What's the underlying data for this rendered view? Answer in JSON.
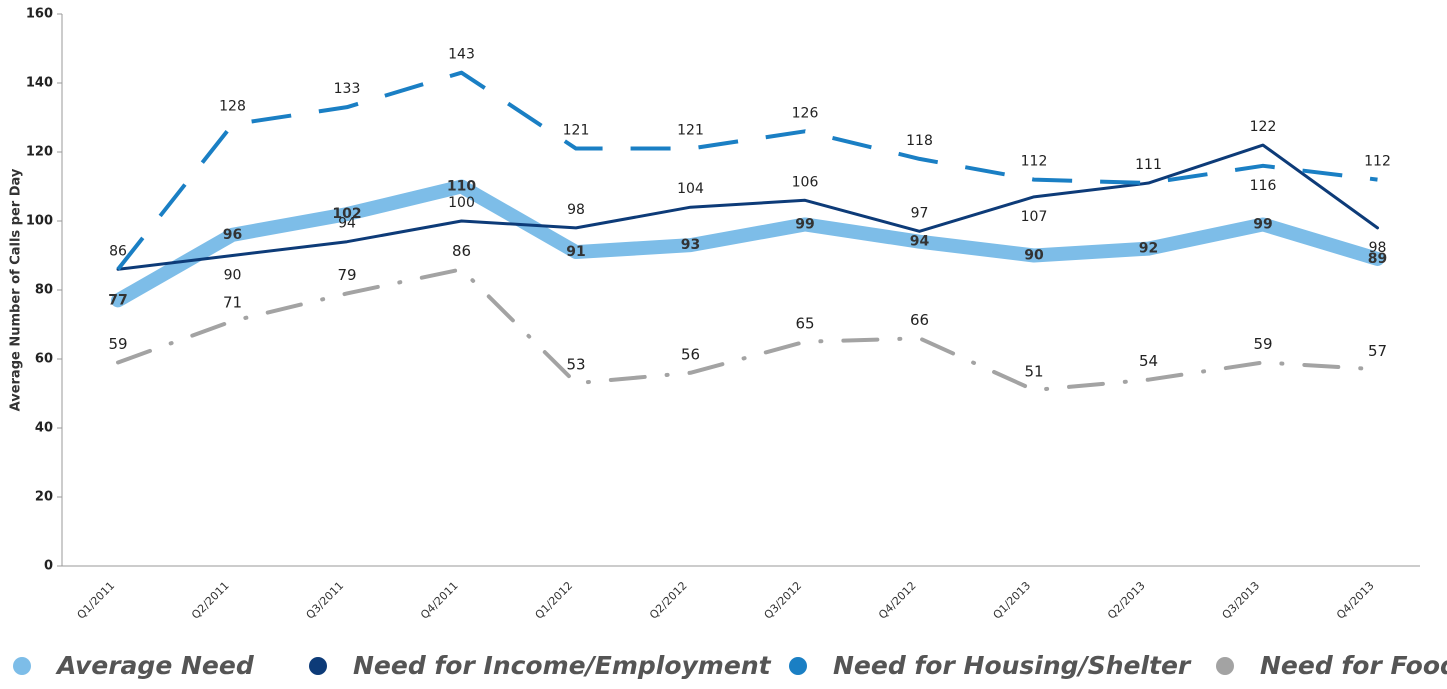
{
  "chart_data": {
    "type": "line",
    "y_label": "Average Number of Calls per Day",
    "categories": [
      "Q1/2011",
      "Q2/2011",
      "Q3/2011",
      "Q4/2011",
      "Q1/2012",
      "Q2/2012",
      "Q3/2012",
      "Q4/2012",
      "Q1/2013",
      "Q2/2013",
      "Q3/2013",
      "Q4/2013"
    ],
    "series": [
      {
        "name": "Average Need",
        "color": "#7dbde8",
        "values": [
          77,
          96,
          102,
          110,
          91,
          93,
          99,
          94,
          90,
          92,
          99,
          89
        ]
      },
      {
        "name": "Need for Income/Employment",
        "color": "#0d3b78",
        "values": [
          86,
          90,
          94,
          100,
          98,
          104,
          106,
          97,
          107,
          111,
          122,
          98
        ]
      },
      {
        "name": "Need for Housing/Shelter",
        "color": "#1a7fc4",
        "values": [
          86,
          128,
          133,
          143,
          121,
          121,
          126,
          118,
          112,
          111,
          116,
          112
        ],
        "value_labels": [
          null,
          "128",
          "133",
          "143",
          "121",
          "121",
          "126",
          "118",
          "112",
          null,
          "116",
          "112"
        ]
      },
      {
        "name": "Need for Food",
        "color": "#a3a3a3",
        "values": [
          59,
          71,
          79,
          86,
          53,
          56,
          65,
          66,
          51,
          54,
          59,
          57
        ]
      }
    ],
    "ylim": [
      0,
      160
    ],
    "yticks": [
      0,
      20,
      40,
      60,
      80,
      100,
      120,
      140,
      160
    ]
  }
}
